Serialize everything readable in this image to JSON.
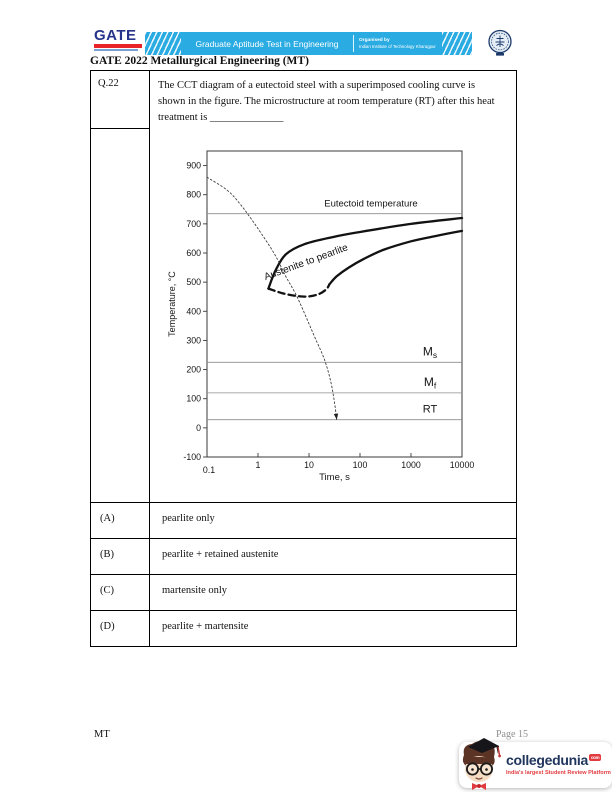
{
  "header": {
    "gate_logo_text": "GATE",
    "banner_title": "Graduate Aptitude Test in Engineering",
    "organised_by": "Organised by",
    "organiser": "Indian Institute of Technology Kharagpur",
    "banner_color": "#2aabe2"
  },
  "doc_title": "GATE 2022 Metallurgical Engineering (MT)",
  "question": {
    "number": "Q.22",
    "lines": [
      "The CCT diagram of a eutectoid steel with a superimposed cooling curve is",
      "shown in the figure. The microstructure at room temperature (RT) after this heat",
      "treatment is ______________"
    ]
  },
  "options": [
    {
      "label": "(A)",
      "text": "pearlite only"
    },
    {
      "label": "(B)",
      "text": "pearlite + retained austenite"
    },
    {
      "label": "(C)",
      "text": "martensite only"
    },
    {
      "label": "(D)",
      "text": "pearlite + martensite"
    }
  ],
  "footer": {
    "paper_code": "MT",
    "page_label": "Page 15",
    "brand": "collegedunia",
    "brand_suffix": "com",
    "tagline": "India's largest Student Review Platform",
    "brand_color": "#20355e",
    "tagline_color": "#e23b3f"
  },
  "chart_data": {
    "type": "line",
    "title": "CCT diagram of a eutectoid steel with superimposed cooling curve",
    "xlabel": "Time, s",
    "ylabel": "Temperature, °C",
    "x_scale": "log",
    "xlim": [
      0.1,
      10000
    ],
    "ylim": [
      -100,
      950
    ],
    "x_ticks": [
      "0.1",
      "1",
      "10",
      "100",
      "1000",
      "10000"
    ],
    "y_ticks": [
      900,
      800,
      700,
      600,
      500,
      400,
      300,
      200,
      100,
      0,
      -100
    ],
    "grid": false,
    "curve_label": "Austenite to pearlite",
    "reference_lines": [
      {
        "name": "eutectoid",
        "label": "Eutectoid temperature",
        "sub": "",
        "temperature_c": 735
      },
      {
        "name": "martensite-start",
        "label": "M",
        "sub": "s",
        "temperature_c": 225
      },
      {
        "name": "martensite-finish",
        "label": "M",
        "sub": "f",
        "temperature_c": 120
      },
      {
        "name": "room-temperature",
        "label": "RT",
        "sub": "",
        "temperature_c": 28
      }
    ],
    "series": [
      {
        "name": "pearlite-start",
        "style": "solid-bold",
        "points": [
          [
            1.6,
            478
          ],
          [
            2.2,
            540
          ],
          [
            3.5,
            595
          ],
          [
            8,
            630
          ],
          [
            30,
            655
          ],
          [
            100,
            672
          ],
          [
            1000,
            700
          ],
          [
            10000,
            720
          ]
        ]
      },
      {
        "name": "pearlite-finish",
        "style": "solid-bold",
        "points": [
          [
            25,
            492
          ],
          [
            35,
            520
          ],
          [
            60,
            550
          ],
          [
            120,
            580
          ],
          [
            300,
            612
          ],
          [
            1000,
            640
          ],
          [
            3000,
            658
          ],
          [
            10000,
            676
          ]
        ]
      },
      {
        "name": "transformation-mid",
        "style": "dashed-bold",
        "points": [
          [
            1.6,
            478
          ],
          [
            3,
            462
          ],
          [
            6,
            452
          ],
          [
            10,
            451
          ],
          [
            16,
            460
          ],
          [
            22,
            476
          ],
          [
            25,
            492
          ]
        ]
      },
      {
        "name": "cooling-curve",
        "style": "dotted-thin-arrow",
        "points": [
          [
            0.1,
            860
          ],
          [
            0.25,
            815
          ],
          [
            0.46,
            765
          ],
          [
            0.97,
            687
          ],
          [
            2.1,
            597
          ],
          [
            3.5,
            520
          ],
          [
            5.9,
            448
          ],
          [
            12.5,
            318
          ],
          [
            20,
            235
          ],
          [
            27,
            155
          ],
          [
            32,
            80
          ],
          [
            35,
            28
          ]
        ]
      }
    ]
  }
}
